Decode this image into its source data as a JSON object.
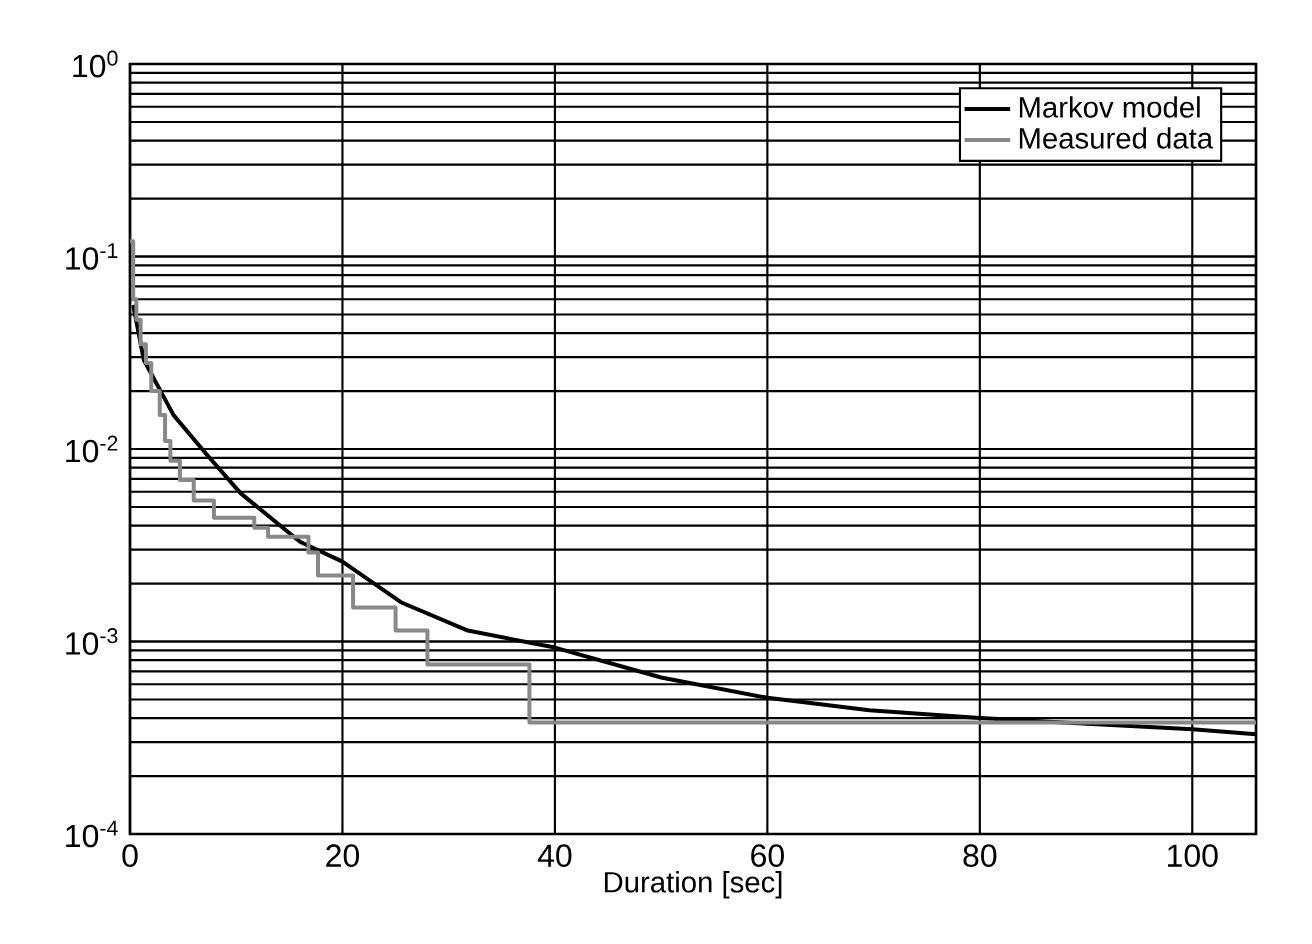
{
  "chart_data": {
    "type": "line",
    "xlabel": "Duration [sec]",
    "log": "y",
    "grid": true,
    "legend": "top right",
    "marker": "none",
    "xlim": [
      0,
      106
    ],
    "ylim": [
      0.0001,
      1
    ],
    "xticks": [
      0,
      20,
      40,
      60,
      80,
      100
    ],
    "yticks": [
      {
        "value": 0.0001,
        "label": "10$^{-4}$"
      },
      {
        "value": 0.001,
        "label": "10$^{-3}$"
      },
      {
        "value": 0.01,
        "label": "10$^{-2}$"
      },
      {
        "value": 0.1,
        "label": "10$^{-1}$"
      },
      {
        "value": 1,
        "label": "10$^{0}$"
      }
    ],
    "series": [
      {
        "name": "Markov model",
        "color": "#000000",
        "x": [
          0.3,
          1.3,
          4.1,
          7.2,
          10.4,
          16,
          20,
          25.5,
          31.8,
          40,
          50,
          60,
          69.6,
          80,
          100,
          106
        ],
        "values": [
          0.056,
          0.029,
          0.015,
          0.0094,
          0.0059,
          0.0033,
          0.0026,
          0.0016,
          0.00114,
          0.00093,
          0.00065,
          0.00051,
          0.00044,
          0.0004,
          0.00035,
          0.00033
        ]
      },
      {
        "name": "Measured data",
        "type": "step",
        "color": "#888888",
        "x": [
          0,
          0.3,
          0.6,
          1,
          1.5,
          2,
          2.8,
          3.3,
          3.8,
          4.7,
          6,
          7.9,
          11.7,
          13,
          16.8,
          17.7,
          21,
          25,
          28,
          37.6,
          106
        ],
        "values": [
          0.12,
          0.06,
          0.047,
          0.035,
          0.028,
          0.02,
          0.015,
          0.011,
          0.0087,
          0.0069,
          0.0054,
          0.0044,
          0.0039,
          0.0035,
          0.0029,
          0.0022,
          0.0015,
          0.00114,
          0.00076,
          0.00038,
          0.00038
        ]
      }
    ]
  }
}
